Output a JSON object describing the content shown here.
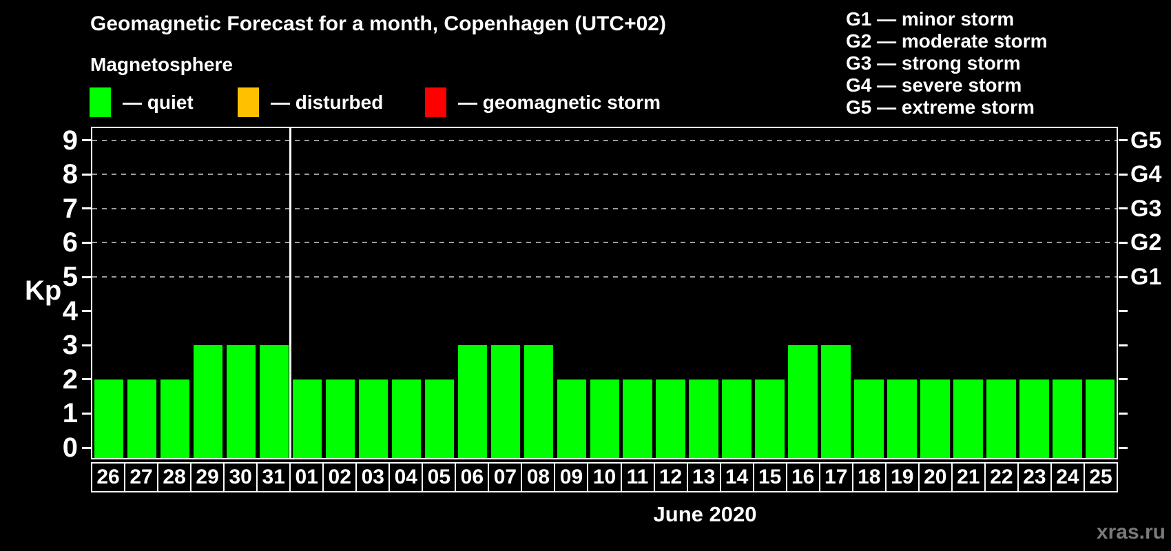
{
  "title": "Geomagnetic Forecast for a month, Copenhagen (UTC+02)",
  "subtitle": "Magnetosphere",
  "legend": {
    "items": [
      {
        "key": "quiet",
        "label": "— quiet",
        "color": "#00ff00"
      },
      {
        "key": "disturbed",
        "label": "— disturbed",
        "color": "#ffc000"
      },
      {
        "key": "geomagnetic-storm",
        "label": "— geomagnetic storm",
        "color": "#ff0000"
      }
    ]
  },
  "g_scale_legend": [
    "G1 — minor storm",
    "G2 — moderate storm",
    "G3 — strong storm",
    "G4 — severe storm",
    "G5 — extreme storm"
  ],
  "axes": {
    "y_title": "Kp",
    "y_ticks": [
      0,
      1,
      2,
      3,
      4,
      5,
      6,
      7,
      8,
      9
    ],
    "right_labels": [
      {
        "kp": 5,
        "label": "G1"
      },
      {
        "kp": 6,
        "label": "G2"
      },
      {
        "kp": 7,
        "label": "G3"
      },
      {
        "kp": 8,
        "label": "G4"
      },
      {
        "kp": 9,
        "label": "G5"
      }
    ],
    "x_title": "June 2020"
  },
  "watermark": "xras.ru",
  "chart_data": {
    "type": "bar",
    "title": "Geomagnetic Forecast for a month, Copenhagen (UTC+02)",
    "categories": [
      "26",
      "27",
      "28",
      "29",
      "30",
      "31",
      "01",
      "02",
      "03",
      "04",
      "05",
      "06",
      "07",
      "08",
      "09",
      "10",
      "11",
      "12",
      "13",
      "14",
      "15",
      "16",
      "17",
      "18",
      "19",
      "20",
      "21",
      "22",
      "23",
      "24",
      "25"
    ],
    "values": [
      2,
      2,
      2,
      3,
      3,
      3,
      2,
      2,
      2,
      2,
      2,
      3,
      3,
      3,
      2,
      2,
      2,
      2,
      2,
      2,
      2,
      3,
      3,
      2,
      2,
      2,
      2,
      2,
      2,
      2,
      2
    ],
    "xlabel": "June 2020",
    "ylabel": "Kp",
    "ylim": [
      0,
      9
    ],
    "bar_color": "#00ff00",
    "grid": "dashed horizontal lines at Kp 5-9 only",
    "gridlines_at_kp": [
      5,
      6,
      7,
      8,
      9
    ],
    "month_separator_after_index": 5,
    "legend_position": "top-left",
    "notes": "days 26-31 belong to May, days 01-25 to June 2020"
  }
}
